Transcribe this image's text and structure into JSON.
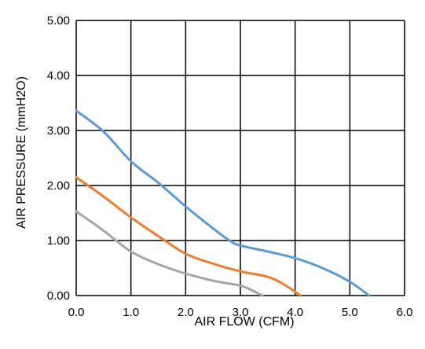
{
  "chart_data": {
    "type": "line",
    "title": "",
    "xlabel": "AIR FLOW  (CFM)",
    "ylabel": "AIR PRESSURE  (mmH2O)",
    "xlim": [
      0,
      6
    ],
    "ylim": [
      0,
      5
    ],
    "x_ticks": [
      "0.0",
      "1.0",
      "2.0",
      "3.0",
      "4.0",
      "5.0",
      "6.0"
    ],
    "y_ticks": [
      "0.00",
      "1.00",
      "2.00",
      "3.00",
      "4.00",
      "5.00"
    ],
    "grid": true,
    "legend": "none",
    "series": [
      {
        "color": "#5b9bd5",
        "points": [
          [
            0,
            3.36
          ],
          [
            0.5,
            2.98
          ],
          [
            1.0,
            2.44
          ],
          [
            1.5,
            2.05
          ],
          [
            2.0,
            1.62
          ],
          [
            2.5,
            1.22
          ],
          [
            2.8,
            1.0
          ],
          [
            3.0,
            0.91
          ],
          [
            3.5,
            0.8
          ],
          [
            4.0,
            0.68
          ],
          [
            4.5,
            0.5
          ],
          [
            5.0,
            0.25
          ],
          [
            5.35,
            0.0
          ]
        ]
      },
      {
        "color": "#ed7d31",
        "points": [
          [
            0,
            2.15
          ],
          [
            0.5,
            1.8
          ],
          [
            1.0,
            1.42
          ],
          [
            1.5,
            1.08
          ],
          [
            2.0,
            0.76
          ],
          [
            2.5,
            0.58
          ],
          [
            3.0,
            0.44
          ],
          [
            3.5,
            0.34
          ],
          [
            3.8,
            0.2
          ],
          [
            4.1,
            0.0
          ]
        ]
      },
      {
        "color": "#a5a5a5",
        "points": [
          [
            0,
            1.53
          ],
          [
            0.5,
            1.18
          ],
          [
            1.0,
            0.8
          ],
          [
            1.5,
            0.57
          ],
          [
            2.0,
            0.4
          ],
          [
            2.5,
            0.27
          ],
          [
            3.0,
            0.18
          ],
          [
            3.2,
            0.1
          ],
          [
            3.4,
            0.0
          ]
        ]
      }
    ]
  }
}
